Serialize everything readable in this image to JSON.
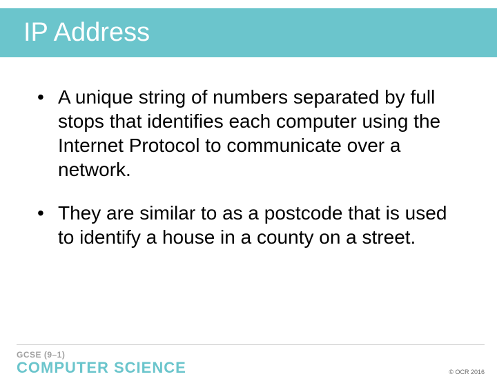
{
  "slide": {
    "title": "IP Address",
    "bullets": [
      "A unique string of numbers separated by full stops that identifies each computer using the Internet Protocol to communicate over a network.",
      "They are similar to as a postcode that is used to identify a house in a county on a street."
    ]
  },
  "footer": {
    "gcse": "GCSE (9–1)",
    "subject": "COMPUTER SCIENCE",
    "copyright": "© OCR 2016"
  },
  "colors": {
    "title_bar_bg": "#6bc5cc",
    "title_text": "#ffffff",
    "body_text": "#000000",
    "brand_accent": "#6bc5cc",
    "gcse_text": "#a0a0a0",
    "divider": "#cccccc"
  },
  "typography": {
    "title_fontsize": 38,
    "bullet_fontsize": 28,
    "gcse_fontsize": 12,
    "subject_fontsize": 22,
    "copyright_fontsize": 9
  }
}
